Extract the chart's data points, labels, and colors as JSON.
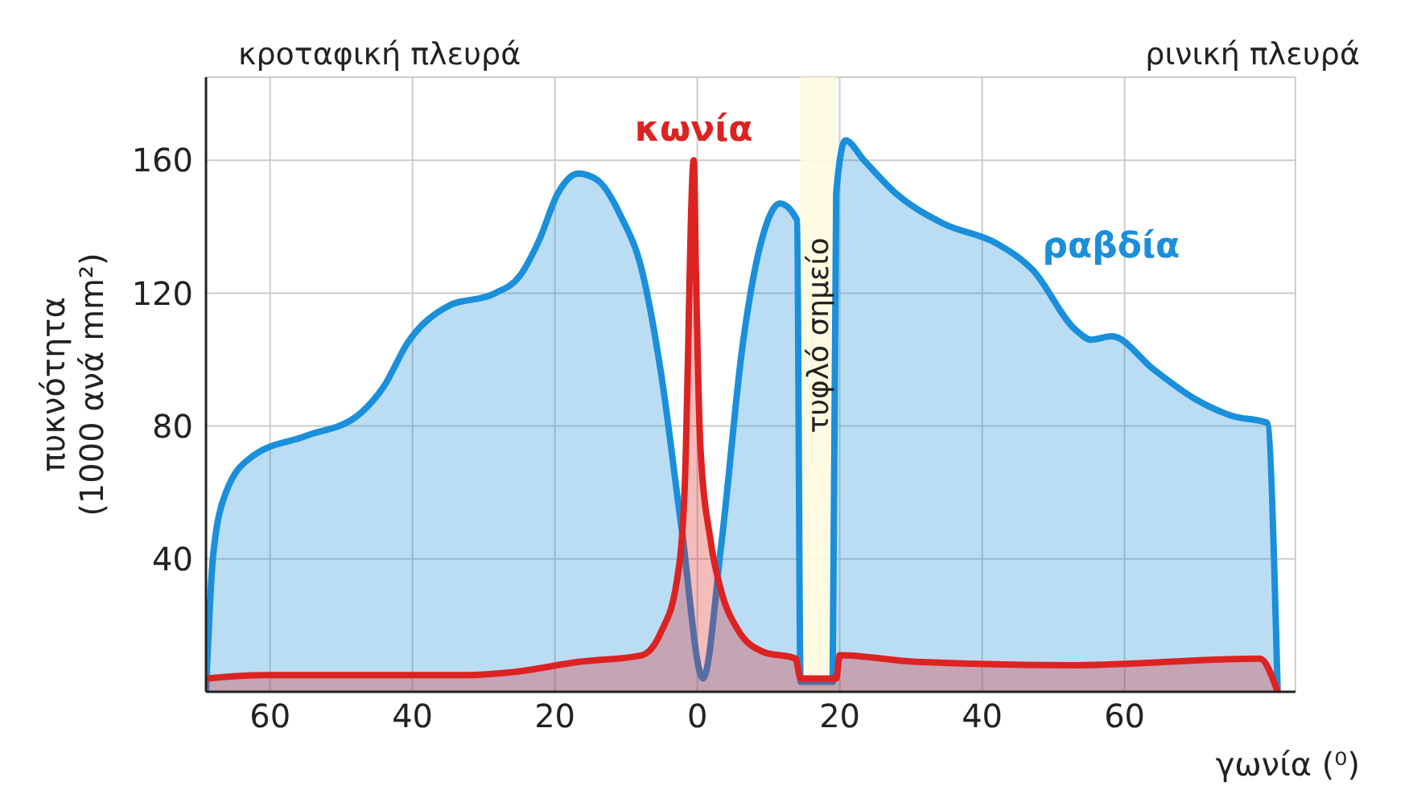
{
  "chart_data": {
    "type": "area",
    "xlabel": "γωνία (⁰)",
    "ylabel": "πυκνότητα\n(1000 ανά mm²)",
    "annotations": [
      "κροταφική πλευρά",
      "ρινική πλευρά"
    ],
    "bands": [
      {
        "axis": "x",
        "from": 14.5,
        "to": 19.5,
        "label": "τυφλό σημείο",
        "color": "#fffbe0"
      }
    ],
    "xlim": [
      -69,
      84
    ],
    "ylim": [
      0,
      185
    ],
    "xticks": [
      {
        "value": -60,
        "label": "60"
      },
      {
        "value": -40,
        "label": "40"
      },
      {
        "value": -20,
        "label": "20"
      },
      0,
      20,
      40,
      60
    ],
    "yticks": [
      40,
      80,
      120,
      160
    ],
    "grid": true,
    "legend": false,
    "marker": "none",
    "series": [
      {
        "name": "ραβδία",
        "color": "#1a8fdb",
        "x": [
          -69,
          -68,
          -66.2,
          -62.4,
          -55,
          -47.8,
          -44,
          -40.7,
          -35.1,
          -28.4,
          -25,
          -22.2,
          -19.6,
          -16.7,
          -14,
          -10.7,
          -7.8,
          -5.1,
          -2.2,
          0.8,
          3.4,
          6.4,
          9.3,
          11.6,
          14,
          14.5,
          19,
          19.5,
          20.8,
          23.4,
          27.9,
          34.5,
          42,
          47.1,
          53.1,
          55.3,
          58.2,
          64.1,
          70,
          75.2,
          80,
          81.5
        ],
        "values": [
          0,
          41,
          60,
          71,
          77,
          83,
          92,
          105,
          116,
          120,
          125,
          136,
          150,
          156,
          154,
          143,
          127,
          96,
          49,
          4,
          45,
          105,
          138,
          147,
          142,
          3,
          3,
          150,
          166,
          160,
          150,
          141,
          135,
          127,
          109,
          106,
          107,
          97,
          88,
          83,
          81,
          0
        ]
      },
      {
        "name": "κωνία",
        "color": "#dd2222",
        "x": [
          -69,
          -60.7,
          -47.8,
          -32.9,
          -25.6,
          -16.7,
          -7.8,
          -5.1,
          -2.9,
          -1.8,
          -0.5,
          -0.2,
          0.4,
          1.9,
          3.4,
          5.6,
          9.3,
          13.8,
          14.5,
          19.5,
          20,
          30.8,
          53,
          79,
          81.5
        ],
        "values": [
          4,
          5,
          5,
          5,
          6,
          9,
          11,
          18,
          33,
          60,
          160,
          127,
          75,
          45,
          30,
          19,
          12,
          10,
          4,
          4,
          11,
          9,
          8,
          10,
          0
        ]
      }
    ]
  }
}
